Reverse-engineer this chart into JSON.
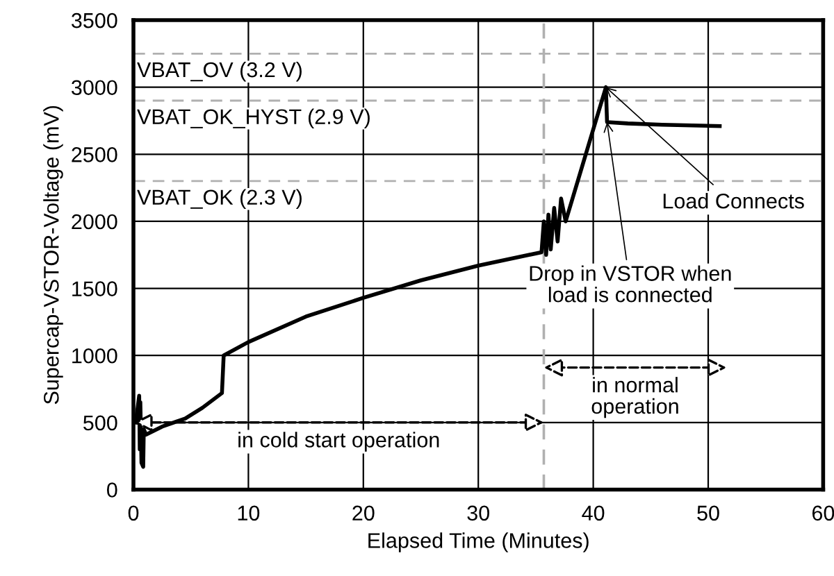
{
  "chart_data": {
    "type": "line",
    "xlabel": "Elapsed Time (Minutes)",
    "ylabel": "Supercap-VSTOR-Voltage (mV)",
    "xlim": [
      0,
      60
    ],
    "xticks": [
      0,
      10,
      20,
      30,
      40,
      50,
      60
    ],
    "ylim": [
      0,
      3500
    ],
    "yticks": [
      0,
      500,
      1000,
      1500,
      2000,
      2500,
      3000,
      3500
    ],
    "grid": true,
    "marker": "none",
    "line_style": "solid",
    "series": [
      {
        "color": "#000000",
        "x": [
          0.2,
          0.5,
          0.55,
          0.6,
          0.7,
          0.85,
          0.9,
          1.1,
          2.5,
          4.5,
          6.0,
          7.7,
          7.85,
          10,
          15,
          20,
          25,
          30,
          35.5,
          35.7,
          35.9,
          36.1,
          36.3,
          36.6,
          36.9,
          37.2,
          37.6,
          41.1,
          41.2,
          43,
          46,
          51
        ],
        "values": [
          500,
          700,
          300,
          650,
          200,
          170,
          450,
          410,
          470,
          530,
          610,
          720,
          1000,
          1100,
          1290,
          1430,
          1560,
          1670,
          1770,
          2000,
          1750,
          2050,
          1790,
          2100,
          1850,
          2170,
          2000,
          3000,
          2740,
          2730,
          2720,
          2710
        ]
      }
    ],
    "ref_lines": [
      {
        "axis": "y",
        "value": 3250,
        "label": "VBAT_OV (3.2 V)",
        "color": "#b0b0b0",
        "line_style": "dashed"
      },
      {
        "axis": "y",
        "value": 2900,
        "label": "VBAT_OK_HYST (2.9 V)",
        "color": "#b0b0b0",
        "line_style": "dashed"
      },
      {
        "axis": "y",
        "value": 2300,
        "label": "VBAT_OK (2.3 V)",
        "color": "#b0b0b0",
        "line_style": "dashed"
      },
      {
        "axis": "x",
        "value": 35.7,
        "color": "#b0b0b0",
        "line_style": "dashed"
      }
    ],
    "annotations": [
      {
        "text": "Load Connects",
        "x": 41.1,
        "y": 3000
      },
      {
        "text": "Drop in VSTOR when\nload is connected",
        "x": 41.2,
        "y": 2740
      },
      "in cold start operation",
      "in normal\noperation"
    ]
  }
}
